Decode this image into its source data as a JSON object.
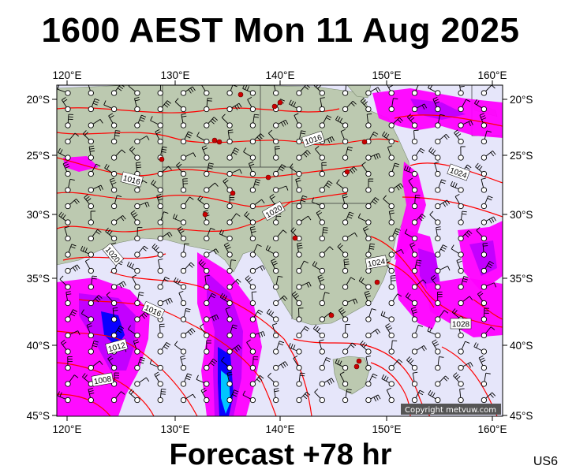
{
  "header": {
    "title": "1600 AEST Mon 11 Aug 2025"
  },
  "footer": {
    "forecast": "Forecast +78 hr"
  },
  "chart_code": "US6",
  "copyright": "Copyright metvuw.com",
  "colors": {
    "ocean": "#e6e6fa",
    "land": "#bcc9b0",
    "isobar": "#ff0000",
    "rain_light": "#ff00ff",
    "rain_moderate": "#c000ff",
    "rain_heavy": "#0000ff",
    "rain_intense": "#00d0ff"
  },
  "map": {
    "lon_labels": [
      "120°E",
      "130°E",
      "140°E",
      "150°E",
      "160°E"
    ],
    "lat_labels": [
      "20°S",
      "25°S",
      "30°S",
      "35°S",
      "40°S",
      "45°S"
    ],
    "isobar_labels": [
      "1016",
      "1016",
      "1020",
      "1024",
      "1024",
      "1028",
      "1020",
      "1016",
      "1012",
      "1008"
    ]
  }
}
